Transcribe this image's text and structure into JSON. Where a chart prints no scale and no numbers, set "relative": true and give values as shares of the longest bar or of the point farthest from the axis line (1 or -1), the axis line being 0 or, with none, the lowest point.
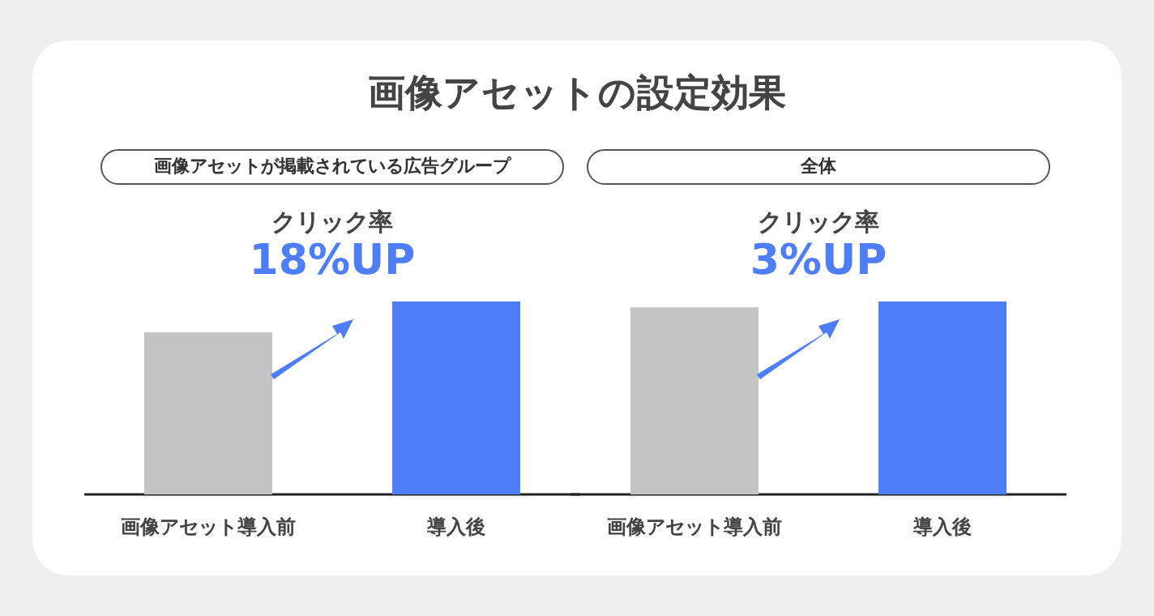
{
  "chart_data": [
    {
      "type": "bar",
      "title": "画像アセットが掲載されている広告グループ",
      "subtitle": "クリック率",
      "annotations": [
        "画像アセットの設定効果",
        "18%UP"
      ],
      "categories": [
        "画像アセット導入前",
        "導入後"
      ],
      "values": [
        0.84,
        1
      ],
      "colors": [
        "#c4c4c4",
        "#4d7ef8"
      ],
      "relative": true
    },
    {
      "type": "bar",
      "title": "全体",
      "subtitle": "クリック率",
      "annotations": [
        "3%UP"
      ],
      "categories": [
        "画像アセット導入前",
        "導入後"
      ],
      "values": [
        0.97,
        1
      ],
      "colors": [
        "#c4c4c4",
        "#4d7ef8"
      ],
      "relative": true
    }
  ]
}
